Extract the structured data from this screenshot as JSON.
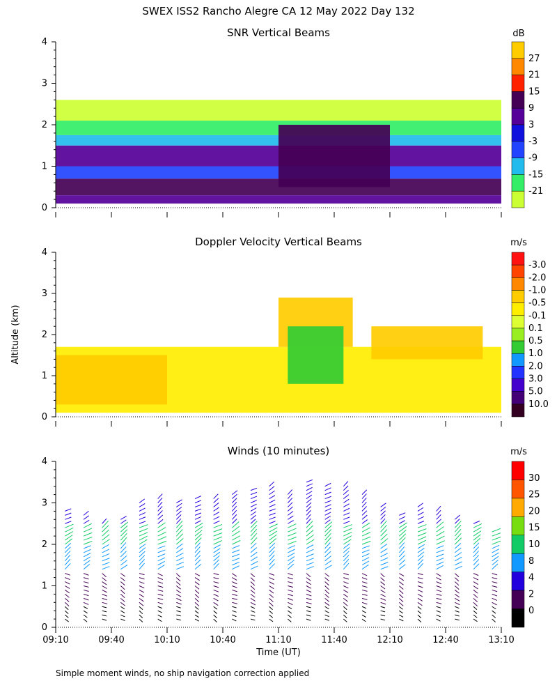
{
  "figure_title": "SWEX ISS2 Rancho Alegre CA  12 May 2022 Day 132",
  "shared_ylabel": "Altitude (km)",
  "footnote": "Simple moment winds, no ship navigation correction applied",
  "chart_data": [
    {
      "type": "heatmap",
      "title": "SNR Vertical Beams",
      "units": "dB",
      "ylim": [
        0,
        4
      ],
      "yticks": [
        "0",
        "1",
        "2",
        "3",
        "4"
      ],
      "xlim_time": [
        "09:10",
        "13:10"
      ],
      "colorbar_labels": [
        "-21",
        "-15",
        "-9",
        "-3",
        "3",
        "9",
        "15",
        "21",
        "27"
      ],
      "colorbar_colors": [
        "#ccff33",
        "#33ee66",
        "#22bbee",
        "#2244ff",
        "#1111dd",
        "#550099",
        "#440055",
        "#ff2200",
        "#ff8800",
        "#ffcc00"
      ],
      "fields": [
        {
          "t0": "09:10",
          "t1": "13:10",
          "z0": 0.1,
          "z1": 0.3,
          "level": "3"
        },
        {
          "t0": "09:10",
          "t1": "13:10",
          "z0": 0.3,
          "z1": 0.7,
          "level": "9"
        },
        {
          "t0": "09:10",
          "t1": "13:10",
          "z0": 0.7,
          "z1": 1.0,
          "level": "-3"
        },
        {
          "t0": "09:10",
          "t1": "13:10",
          "z0": 1.0,
          "z1": 1.5,
          "level": "3"
        },
        {
          "t0": "09:10",
          "t1": "13:10",
          "z0": 1.5,
          "z1": 1.75,
          "level": "-9"
        },
        {
          "t0": "09:10",
          "t1": "13:10",
          "z0": 1.75,
          "z1": 2.1,
          "level": "-15"
        },
        {
          "t0": "09:10",
          "t1": "13:10",
          "z0": 2.1,
          "z1": 2.6,
          "level": "-21"
        },
        {
          "t0": "11:10",
          "t1": "12:10",
          "z0": 0.5,
          "z1": 2.0,
          "level": "9"
        }
      ]
    },
    {
      "type": "heatmap",
      "title": "Doppler Velocity Vertical Beams",
      "units": "m/s",
      "ylim": [
        0,
        4
      ],
      "yticks": [
        "0",
        "1",
        "2",
        "3",
        "4"
      ],
      "xlim_time": [
        "09:10",
        "13:10"
      ],
      "colorbar_labels": [
        "10.0",
        "5.0",
        "3.0",
        "2.0",
        "1.0",
        "0.5",
        "0.1",
        "-0.1",
        "-0.5",
        "-1.0",
        "-2.0",
        "-3.0"
      ],
      "colorbar_colors": [
        "#330022",
        "#440077",
        "#4400cc",
        "#2233ff",
        "#1199ff",
        "#33cc33",
        "#99ee22",
        "#ddff33",
        "#ffee00",
        "#ffcc00",
        "#ff8800",
        "#ff4400",
        "#ff1111"
      ],
      "fields": [
        {
          "t0": "09:10",
          "t1": "13:10",
          "z0": 0.1,
          "z1": 1.7,
          "level": "-0.1"
        },
        {
          "t0": "09:10",
          "t1": "10:10",
          "z0": 0.3,
          "z1": 1.5,
          "level": "-0.5"
        },
        {
          "t0": "11:10",
          "t1": "11:50",
          "z0": 1.7,
          "z1": 2.9,
          "level": "-0.5"
        },
        {
          "t0": "12:00",
          "t1": "13:00",
          "z0": 1.4,
          "z1": 2.2,
          "level": "-0.5"
        },
        {
          "t0": "11:15",
          "t1": "11:45",
          "z0": 0.8,
          "z1": 2.2,
          "level": "0.5"
        }
      ]
    },
    {
      "type": "wind_barbs",
      "title": "Winds (10 minutes)",
      "units": "m/s",
      "xlabel": "Time (UT)",
      "ylim": [
        0,
        4
      ],
      "yticks": [
        "0",
        "1",
        "2",
        "3",
        "4"
      ],
      "x_tick_labels": [
        "09:10",
        "09:40",
        "10:10",
        "10:40",
        "11:10",
        "11:40",
        "12:10",
        "12:40",
        "13:10"
      ],
      "colorbar_labels": [
        "0",
        "2",
        "4",
        "8",
        "10",
        "15",
        "20",
        "25",
        "30"
      ],
      "colorbar_colors": [
        "#000000",
        "#440055",
        "#2200dd",
        "#1199ff",
        "#11cc66",
        "#77dd11",
        "#ffaa00",
        "#ff5500",
        "#ff0000"
      ],
      "profile_times": [
        "09:15",
        "09:25",
        "09:35",
        "09:45",
        "09:55",
        "10:05",
        "10:15",
        "10:25",
        "10:35",
        "10:45",
        "10:55",
        "11:05",
        "11:15",
        "11:25",
        "11:35",
        "11:45",
        "11:55",
        "12:05",
        "12:15",
        "12:25",
        "12:35",
        "12:45",
        "12:55",
        "13:05"
      ],
      "profile_top_km": [
        2.9,
        2.8,
        2.6,
        2.7,
        3.1,
        3.2,
        3.1,
        3.2,
        3.2,
        3.3,
        3.4,
        3.5,
        3.3,
        3.6,
        3.5,
        3.5,
        3.3,
        3.0,
        2.8,
        3.0,
        2.9,
        2.7,
        2.6,
        2.4
      ],
      "speed_by_altitude": [
        {
          "z0": 0.0,
          "z1": 0.6,
          "speed": 1
        },
        {
          "z0": 0.6,
          "z1": 1.4,
          "speed": 3
        },
        {
          "z0": 1.4,
          "z1": 2.0,
          "speed": 9
        },
        {
          "z0": 2.0,
          "z1": 2.5,
          "speed": 12
        },
        {
          "z0": 2.5,
          "z1": 3.6,
          "speed": 6
        }
      ]
    }
  ]
}
